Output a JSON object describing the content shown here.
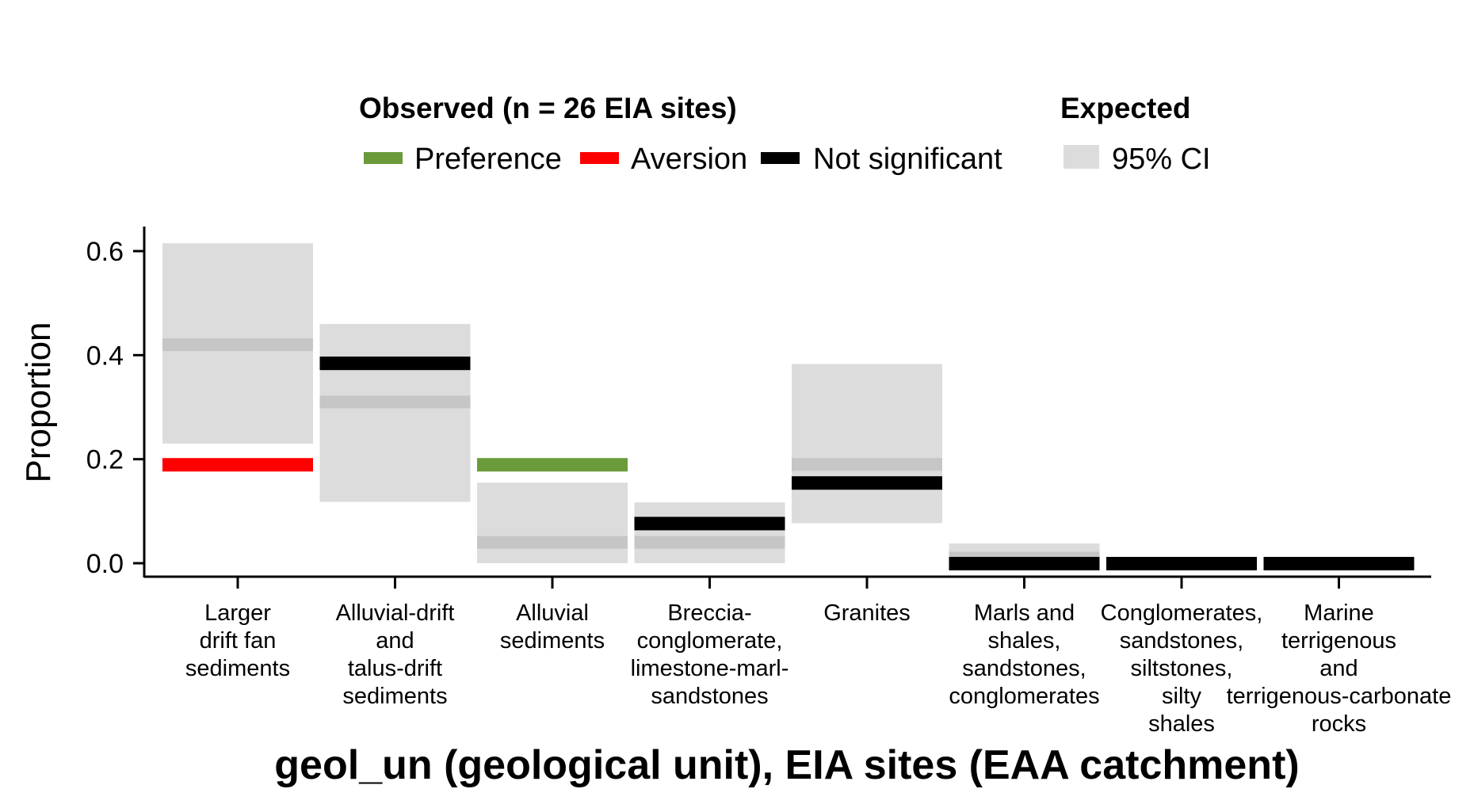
{
  "colors": {
    "preference": "#6a9a3a",
    "aversion": "#ff0000",
    "not_significant": "#000000",
    "ci_band": "#dcdcdc",
    "expected_line": "#c6c6c6"
  },
  "legend": {
    "observed_title": "Observed (n = 26 EIA sites)",
    "observed_items": [
      {
        "key": "preference",
        "label": "Preference"
      },
      {
        "key": "aversion",
        "label": "Aversion"
      },
      {
        "key": "not_significant",
        "label": "Not significant"
      }
    ],
    "expected_title": "Expected",
    "expected_items": [
      {
        "key": "ci_band",
        "label": "95% CI"
      }
    ]
  },
  "chart_data": {
    "type": "bar",
    "xlabel": "geol_un (geological unit), EIA sites (EAA catchment)",
    "ylabel": "Proportion",
    "ylim": [
      -0.03,
      0.64
    ],
    "yticks": [
      0.0,
      0.2,
      0.4,
      0.6
    ],
    "ytick_labels": [
      "0.0",
      "0.2",
      "0.4",
      "0.6"
    ],
    "categories": [
      {
        "lines": [
          "Larger",
          "drift fan",
          "sediments"
        ],
        "observed": 0.19,
        "status": "aversion",
        "expected": 0.42,
        "ci": [
          0.23,
          0.615
        ]
      },
      {
        "lines": [
          "Alluvial-drift",
          "and",
          "talus-drift",
          "sediments"
        ],
        "observed": 0.385,
        "status": "not_significant",
        "expected": 0.31,
        "ci": [
          0.118,
          0.46
        ]
      },
      {
        "lines": [
          "Alluvial",
          "sediments"
        ],
        "observed": 0.19,
        "status": "preference",
        "expected": 0.04,
        "ci": [
          0.0,
          0.155
        ]
      },
      {
        "lines": [
          "Breccia-",
          "conglomerate,",
          "limestone-marl-",
          "sandstones"
        ],
        "observed": 0.077,
        "status": "not_significant",
        "expected": 0.04,
        "ci": [
          0.0,
          0.117
        ]
      },
      {
        "lines": [
          "Granites"
        ],
        "observed": 0.155,
        "status": "not_significant",
        "expected": 0.19,
        "ci": [
          0.077,
          0.383
        ]
      },
      {
        "lines": [
          "Marls and",
          "shales,",
          "sandstones,",
          "conglomerates"
        ],
        "observed": 0.0,
        "status": "not_significant",
        "expected": 0.01,
        "ci": [
          0.0,
          0.038
        ]
      },
      {
        "lines": [
          "Conglomerates,",
          "sandstones,",
          "siltstones,",
          "silty",
          "shales"
        ],
        "observed": 0.0,
        "status": "not_significant",
        "expected": 0.0,
        "ci": [
          0.0,
          0.0
        ]
      },
      {
        "lines": [
          "Marine",
          "terrigenous",
          "and",
          "terrigenous-carbonate",
          "rocks"
        ],
        "observed": 0.0,
        "status": "not_significant",
        "expected": 0.0,
        "ci": [
          0.0,
          0.0
        ]
      }
    ]
  }
}
